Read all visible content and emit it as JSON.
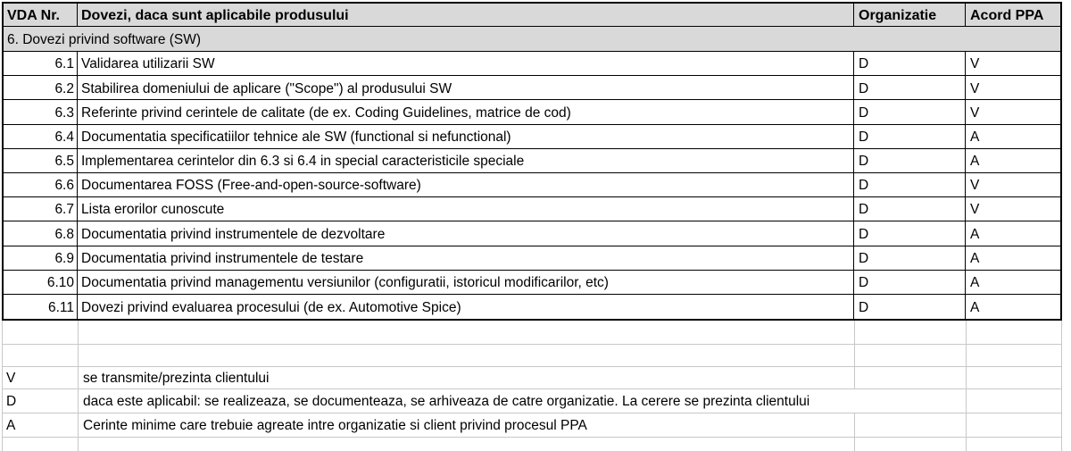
{
  "table": {
    "columns": [
      "VDA Nr.",
      "Dovezi, daca sunt aplicabile produsului",
      "Organizatie",
      "Acord PPA"
    ],
    "section_title": "6. Dovezi privind software (SW)",
    "rows": [
      {
        "nr": "6.1",
        "text": "Validarea utilizarii SW",
        "org": "D",
        "ppa": "V"
      },
      {
        "nr": "6.2",
        "text": "Stabilirea domeniului de aplicare (\"Scope\") al produsului SW",
        "org": "D",
        "ppa": "V"
      },
      {
        "nr": "6.3",
        "text": "Referinte privind cerintele de calitate (de ex. Coding Guidelines, matrice de cod)",
        "org": "D",
        "ppa": "V"
      },
      {
        "nr": "6.4",
        "text": "Documentatia specificatiilor tehnice ale SW (functional si nefunctional)",
        "org": "D",
        "ppa": "A"
      },
      {
        "nr": "6.5",
        "text": "Implementarea cerintelor din 6.3 si 6.4 in special caracteristicile speciale",
        "org": "D",
        "ppa": "A"
      },
      {
        "nr": "6.6",
        "text": "Documentarea FOSS (Free-and-open-source-software)",
        "org": "D",
        "ppa": "V"
      },
      {
        "nr": "6.7",
        "text": "Lista erorilor cunoscute",
        "org": "D",
        "ppa": "V"
      },
      {
        "nr": "6.8",
        "text": "Documentatia privind instrumentele de dezvoltare",
        "org": "D",
        "ppa": "A"
      },
      {
        "nr": "6.9",
        "text": "Documentatia privind instrumentele de testare",
        "org": "D",
        "ppa": "A"
      },
      {
        "nr": "6.10",
        "text": "Documentatia privind managementu versiunilor (configuratii, istoricul modificarilor, etc)",
        "org": "D",
        "ppa": "A"
      },
      {
        "nr": "6.11",
        "text": "Dovezi privind evaluarea procesului (de ex. Automotive Spice)",
        "org": "D",
        "ppa": "A"
      }
    ]
  },
  "legend": [
    {
      "code": "V",
      "description": "se transmite/prezinta clientului"
    },
    {
      "code": "D",
      "description": "daca este aplicabil: se realizeaza, se documenteaza, se arhiveaza de catre organizatie. La cerere se prezinta clientului"
    },
    {
      "code": "A",
      "description": "Cerinte minime care trebuie agreate intre organizatie si client privind procesul PPA"
    }
  ],
  "colors": {
    "header_fill": "#d9d9d9",
    "section_fill": "#d9d9d9",
    "border_black": "#000000",
    "gridline": "#c8c8c8",
    "text": "#000000",
    "bg": "#ffffff"
  }
}
